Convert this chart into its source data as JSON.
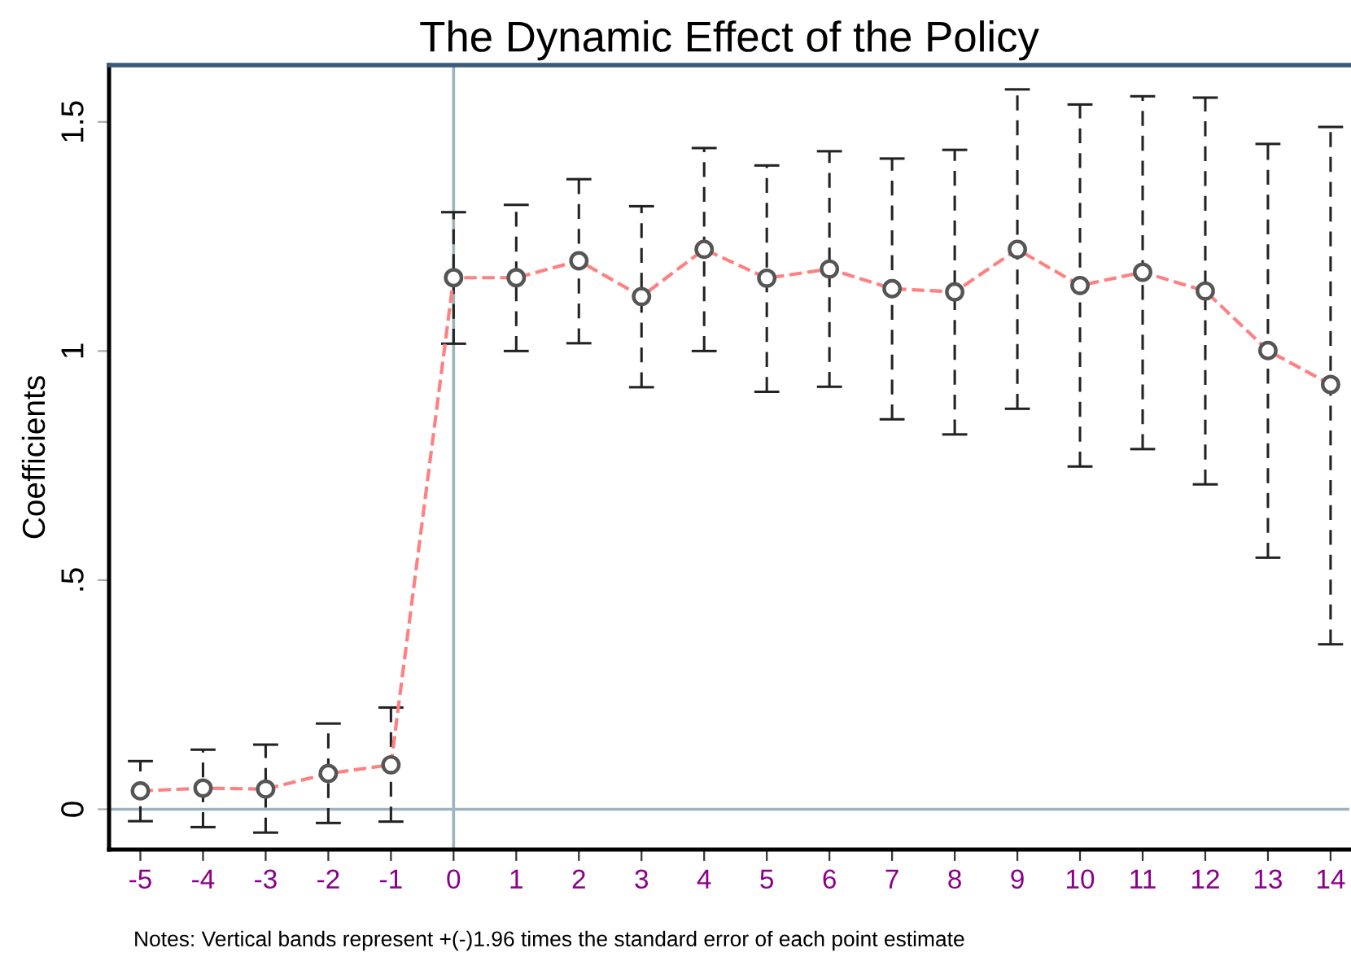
{
  "chart_data": {
    "type": "line",
    "title": "The Dynamic Effect of the Policy",
    "ylabel": "Coefficients",
    "x": [
      -5,
      -4,
      -3,
      -2,
      -1,
      0,
      1,
      2,
      3,
      4,
      5,
      6,
      7,
      8,
      9,
      10,
      11,
      12,
      13,
      14
    ],
    "series": [
      {
        "color": "#ff8080",
        "marker": "circle",
        "line_style": "dashed",
        "values": [
          0.04,
          0.046,
          0.044,
          0.078,
          0.097,
          1.16,
          1.16,
          1.197,
          1.119,
          1.222,
          1.159,
          1.179,
          1.136,
          1.129,
          1.222,
          1.143,
          1.172,
          1.131,
          1.001,
          0.927
        ],
        "errors": [
          [
            -0.026,
            0.105
          ],
          [
            -0.039,
            0.13
          ],
          [
            -0.051,
            0.141
          ],
          [
            -0.03,
            0.187
          ],
          [
            -0.027,
            0.222
          ],
          [
            1.016,
            1.303
          ],
          [
            1.0,
            1.319
          ],
          [
            1.017,
            1.375
          ],
          [
            0.921,
            1.316
          ],
          [
            1.0,
            1.443
          ],
          [
            0.911,
            1.405
          ],
          [
            0.922,
            1.436
          ],
          [
            0.851,
            1.42
          ],
          [
            0.818,
            1.439
          ],
          [
            0.874,
            1.571
          ],
          [
            0.748,
            1.538
          ],
          [
            0.786,
            1.556
          ],
          [
            0.709,
            1.553
          ],
          [
            0.549,
            1.452
          ],
          [
            0.36,
            1.489
          ]
        ]
      }
    ],
    "xlim": [
      -5.5,
      14.3
    ],
    "ylim": [
      -0.088,
      1.624
    ],
    "xticks": [
      -5,
      -4,
      -3,
      -2,
      -1,
      0,
      1,
      2,
      3,
      4,
      5,
      6,
      7,
      8,
      9,
      10,
      11,
      12,
      13,
      14
    ],
    "yticks": [
      0,
      {
        "value": 0.5,
        "label": ".5"
      },
      1,
      1.5
    ],
    "ref_lines": [
      {
        "axis": "x",
        "value": 0,
        "color": "#9fb3b8"
      },
      {
        "axis": "y",
        "value": 0,
        "color": "#9fb3c0"
      }
    ],
    "grid": false,
    "legend": false,
    "annotations": [
      "Notes: Vertical bands represent +(-)1.96 times the standard error of each point estimate"
    ]
  }
}
